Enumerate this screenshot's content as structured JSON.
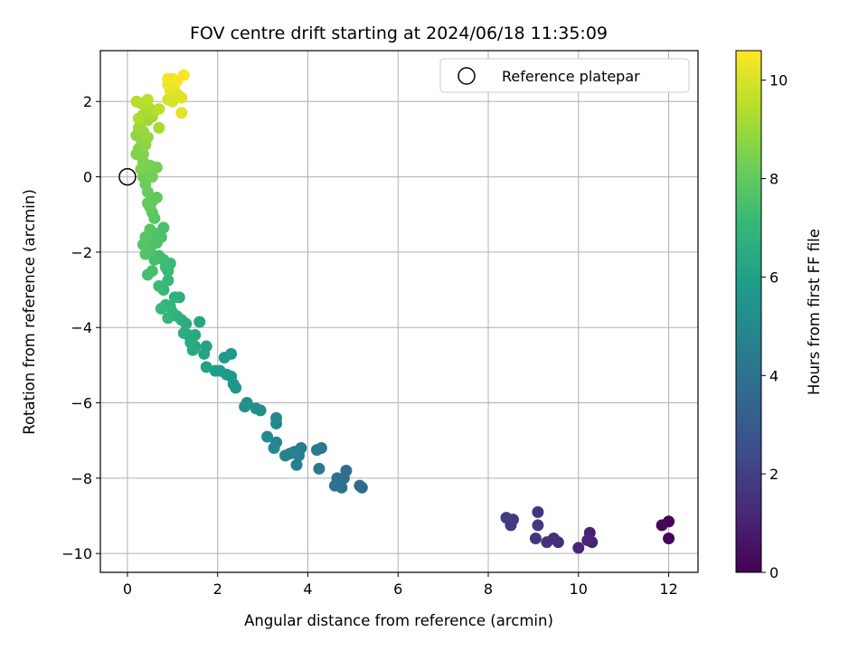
{
  "chart_data": {
    "type": "scatter",
    "title": "FOV centre drift starting at 2024/06/18 11:35:09",
    "xlabel": "Angular distance from reference (arcmin)",
    "ylabel": "Rotation from reference (arcmin)",
    "xlim": [
      -0.6,
      12.65
    ],
    "ylim": [
      -10.5,
      3.35
    ],
    "xticks": [
      0,
      2,
      4,
      6,
      8,
      10,
      12
    ],
    "yticks": [
      -10,
      -8,
      -6,
      -4,
      -2,
      0,
      2
    ],
    "xtick_labels": [
      "0",
      "2",
      "4",
      "6",
      "8",
      "10",
      "12"
    ],
    "ytick_labels": [
      "−10",
      "−8",
      "−6",
      "−4",
      "−2",
      "0",
      "2"
    ],
    "grid": true,
    "legend": {
      "placement": "top-right",
      "entries": [
        "Reference platepar"
      ]
    },
    "reference_point": {
      "x": 0,
      "y": 0
    },
    "colorbar": {
      "label": "Hours from first FF file",
      "range": [
        0,
        10.6
      ],
      "ticks": [
        0,
        2,
        4,
        6,
        8,
        10
      ],
      "tick_labels": [
        "0",
        "2",
        "4",
        "6",
        "8",
        "10"
      ],
      "colormap": "viridis",
      "colormap_stops": [
        "#440154",
        "#482878",
        "#3e4a89",
        "#31688e",
        "#26828e",
        "#1f9e89",
        "#35b779",
        "#6ece58",
        "#b5de2b",
        "#fde725"
      ]
    },
    "series": [
      {
        "points": [
          {
            "x": 12.0,
            "y": -9.15,
            "t": 0.05
          },
          {
            "x": 12.0,
            "y": -9.6,
            "t": 0.1
          },
          {
            "x": 11.85,
            "y": -9.25,
            "t": 0.2
          },
          {
            "x": 10.25,
            "y": -9.45,
            "t": 1.0
          },
          {
            "x": 10.3,
            "y": -9.7,
            "t": 1.05
          },
          {
            "x": 10.2,
            "y": -9.65,
            "t": 1.1
          },
          {
            "x": 10.0,
            "y": -9.85,
            "t": 1.15
          },
          {
            "x": 9.55,
            "y": -9.7,
            "t": 1.4
          },
          {
            "x": 9.45,
            "y": -9.6,
            "t": 1.45
          },
          {
            "x": 9.3,
            "y": -9.7,
            "t": 1.5
          },
          {
            "x": 9.1,
            "y": -8.9,
            "t": 1.6
          },
          {
            "x": 9.1,
            "y": -9.25,
            "t": 1.65
          },
          {
            "x": 9.05,
            "y": -9.6,
            "t": 1.7
          },
          {
            "x": 8.55,
            "y": -9.1,
            "t": 1.8
          },
          {
            "x": 8.5,
            "y": -9.25,
            "t": 1.85
          },
          {
            "x": 8.4,
            "y": -9.05,
            "t": 1.9
          },
          {
            "x": 5.2,
            "y": -8.25,
            "t": 3.6
          },
          {
            "x": 5.15,
            "y": -8.2,
            "t": 3.65
          },
          {
            "x": 4.85,
            "y": -7.8,
            "t": 3.8
          },
          {
            "x": 4.8,
            "y": -8.0,
            "t": 3.85
          },
          {
            "x": 4.75,
            "y": -8.25,
            "t": 3.9
          },
          {
            "x": 4.65,
            "y": -8.0,
            "t": 3.95
          },
          {
            "x": 4.6,
            "y": -8.2,
            "t": 4.0
          },
          {
            "x": 4.3,
            "y": -7.2,
            "t": 4.2
          },
          {
            "x": 4.25,
            "y": -7.75,
            "t": 4.25
          },
          {
            "x": 4.2,
            "y": -7.25,
            "t": 4.3
          },
          {
            "x": 3.85,
            "y": -7.2,
            "t": 4.5
          },
          {
            "x": 3.8,
            "y": -7.4,
            "t": 4.55
          },
          {
            "x": 3.75,
            "y": -7.65,
            "t": 4.6
          },
          {
            "x": 3.7,
            "y": -7.3,
            "t": 4.65
          },
          {
            "x": 3.6,
            "y": -7.35,
            "t": 4.7
          },
          {
            "x": 3.5,
            "y": -7.4,
            "t": 4.75
          },
          {
            "x": 3.3,
            "y": -7.05,
            "t": 4.9
          },
          {
            "x": 3.3,
            "y": -6.4,
            "t": 4.95
          },
          {
            "x": 3.3,
            "y": -6.55,
            "t": 5.0
          },
          {
            "x": 3.25,
            "y": -7.2,
            "t": 5.0
          },
          {
            "x": 3.1,
            "y": -6.9,
            "t": 5.05
          },
          {
            "x": 2.95,
            "y": -6.2,
            "t": 5.2
          },
          {
            "x": 2.85,
            "y": -6.15,
            "t": 5.25
          },
          {
            "x": 2.65,
            "y": -6.0,
            "t": 5.35
          },
          {
            "x": 2.6,
            "y": -6.1,
            "t": 5.4
          },
          {
            "x": 2.4,
            "y": -5.6,
            "t": 5.55
          },
          {
            "x": 2.35,
            "y": -5.5,
            "t": 5.6
          },
          {
            "x": 2.3,
            "y": -5.3,
            "t": 5.65
          },
          {
            "x": 2.3,
            "y": -4.7,
            "t": 5.7
          },
          {
            "x": 2.2,
            "y": -5.25,
            "t": 5.75
          },
          {
            "x": 2.15,
            "y": -4.8,
            "t": 5.8
          },
          {
            "x": 2.05,
            "y": -5.15,
            "t": 5.85
          },
          {
            "x": 1.95,
            "y": -5.15,
            "t": 5.9
          },
          {
            "x": 1.75,
            "y": -5.05,
            "t": 6.05
          },
          {
            "x": 1.75,
            "y": -4.5,
            "t": 6.1
          },
          {
            "x": 1.7,
            "y": -4.7,
            "t": 6.15
          },
          {
            "x": 1.6,
            "y": -3.85,
            "t": 6.25
          },
          {
            "x": 1.5,
            "y": -4.5,
            "t": 6.3
          },
          {
            "x": 1.5,
            "y": -4.2,
            "t": 6.35
          },
          {
            "x": 1.45,
            "y": -4.6,
            "t": 6.4
          },
          {
            "x": 1.4,
            "y": -4.4,
            "t": 6.45
          },
          {
            "x": 1.35,
            "y": -4.2,
            "t": 6.5
          },
          {
            "x": 1.3,
            "y": -3.9,
            "t": 6.55
          },
          {
            "x": 1.25,
            "y": -4.15,
            "t": 6.6
          },
          {
            "x": 1.2,
            "y": -3.8,
            "t": 6.65
          },
          {
            "x": 1.15,
            "y": -3.2,
            "t": 6.7
          },
          {
            "x": 1.1,
            "y": -3.7,
            "t": 6.75
          },
          {
            "x": 1.05,
            "y": -3.2,
            "t": 6.8
          },
          {
            "x": 1.0,
            "y": -3.6,
            "t": 6.85
          },
          {
            "x": 0.95,
            "y": -3.45,
            "t": 6.9
          },
          {
            "x": 0.9,
            "y": -3.75,
            "t": 6.95
          },
          {
            "x": 0.85,
            "y": -3.4,
            "t": 7.0
          },
          {
            "x": 0.8,
            "y": -3.0,
            "t": 7.05
          },
          {
            "x": 0.75,
            "y": -3.5,
            "t": 7.1
          },
          {
            "x": 0.9,
            "y": -2.75,
            "t": 7.1
          },
          {
            "x": 0.9,
            "y": -2.5,
            "t": 7.15
          },
          {
            "x": 0.95,
            "y": -2.3,
            "t": 7.2
          },
          {
            "x": 0.7,
            "y": -2.9,
            "t": 7.2
          },
          {
            "x": 0.85,
            "y": -2.4,
            "t": 7.25
          },
          {
            "x": 0.8,
            "y": -2.2,
            "t": 7.3
          },
          {
            "x": 0.7,
            "y": -2.1,
            "t": 7.35
          },
          {
            "x": 0.6,
            "y": -2.2,
            "t": 7.4
          },
          {
            "x": 0.55,
            "y": -2.5,
            "t": 7.45
          },
          {
            "x": 0.45,
            "y": -2.6,
            "t": 7.45
          },
          {
            "x": 0.8,
            "y": -1.35,
            "t": 7.5
          },
          {
            "x": 0.75,
            "y": -1.6,
            "t": 7.55
          },
          {
            "x": 0.65,
            "y": -1.75,
            "t": 7.6
          },
          {
            "x": 0.6,
            "y": -1.5,
            "t": 7.6
          },
          {
            "x": 0.55,
            "y": -1.8,
            "t": 7.65
          },
          {
            "x": 0.5,
            "y": -1.95,
            "t": 7.7
          },
          {
            "x": 0.4,
            "y": -2.05,
            "t": 7.7
          },
          {
            "x": 0.35,
            "y": -1.8,
            "t": 7.75
          },
          {
            "x": 0.4,
            "y": -1.6,
            "t": 7.8
          },
          {
            "x": 0.5,
            "y": -1.4,
            "t": 7.8
          },
          {
            "x": 0.6,
            "y": -1.1,
            "t": 7.85
          },
          {
            "x": 0.55,
            "y": -0.95,
            "t": 7.9
          },
          {
            "x": 0.65,
            "y": -0.55,
            "t": 7.95
          },
          {
            "x": 0.55,
            "y": -0.65,
            "t": 8.0
          },
          {
            "x": 0.5,
            "y": -0.8,
            "t": 8.0
          },
          {
            "x": 0.45,
            "y": -0.7,
            "t": 8.05
          },
          {
            "x": 0.45,
            "y": -0.4,
            "t": 8.1
          },
          {
            "x": 0.4,
            "y": -0.2,
            "t": 8.15
          },
          {
            "x": 0.35,
            "y": 0.0,
            "t": 8.2
          },
          {
            "x": 0.45,
            "y": 0.1,
            "t": 8.25
          },
          {
            "x": 0.55,
            "y": 0.0,
            "t": 8.3
          },
          {
            "x": 0.65,
            "y": 0.25,
            "t": 8.35
          },
          {
            "x": 0.5,
            "y": 0.3,
            "t": 8.4
          },
          {
            "x": 0.35,
            "y": 0.4,
            "t": 8.45
          },
          {
            "x": 0.3,
            "y": 0.2,
            "t": 8.5
          },
          {
            "x": 0.2,
            "y": 0.6,
            "t": 8.55
          },
          {
            "x": 0.25,
            "y": 0.75,
            "t": 8.6
          },
          {
            "x": 0.35,
            "y": 0.6,
            "t": 8.6
          },
          {
            "x": 0.4,
            "y": 0.85,
            "t": 8.7
          },
          {
            "x": 0.3,
            "y": 1.0,
            "t": 8.75
          },
          {
            "x": 0.2,
            "y": 1.1,
            "t": 8.8
          },
          {
            "x": 0.35,
            "y": 1.2,
            "t": 8.85
          },
          {
            "x": 0.45,
            "y": 1.05,
            "t": 8.9
          },
          {
            "x": 0.25,
            "y": 1.3,
            "t": 8.95
          },
          {
            "x": 0.3,
            "y": 1.45,
            "t": 9.0
          },
          {
            "x": 0.45,
            "y": 1.5,
            "t": 9.05
          },
          {
            "x": 0.35,
            "y": 1.65,
            "t": 9.1
          },
          {
            "x": 0.55,
            "y": 1.6,
            "t": 9.15
          },
          {
            "x": 0.7,
            "y": 1.3,
            "t": 9.2
          },
          {
            "x": 0.5,
            "y": 1.8,
            "t": 9.25
          },
          {
            "x": 0.6,
            "y": 1.75,
            "t": 9.3
          },
          {
            "x": 0.25,
            "y": 1.55,
            "t": 9.3
          },
          {
            "x": 0.4,
            "y": 1.9,
            "t": 9.35
          },
          {
            "x": 0.3,
            "y": 1.95,
            "t": 9.4
          },
          {
            "x": 0.2,
            "y": 2.0,
            "t": 9.45
          },
          {
            "x": 0.45,
            "y": 2.05,
            "t": 9.5
          },
          {
            "x": 0.7,
            "y": 1.8,
            "t": 9.55
          },
          {
            "x": 0.9,
            "y": 2.05,
            "t": 9.9
          },
          {
            "x": 1.0,
            "y": 2.0,
            "t": 10.0
          },
          {
            "x": 1.1,
            "y": 2.2,
            "t": 10.05
          },
          {
            "x": 1.2,
            "y": 2.1,
            "t": 10.1
          },
          {
            "x": 1.2,
            "y": 1.7,
            "t": 10.15
          },
          {
            "x": 0.95,
            "y": 2.3,
            "t": 10.2
          },
          {
            "x": 1.05,
            "y": 2.45,
            "t": 10.25
          },
          {
            "x": 0.9,
            "y": 2.45,
            "t": 10.3
          },
          {
            "x": 1.0,
            "y": 2.6,
            "t": 10.35
          },
          {
            "x": 0.9,
            "y": 2.6,
            "t": 10.4
          },
          {
            "x": 1.1,
            "y": 2.55,
            "t": 10.45
          },
          {
            "x": 1.25,
            "y": 2.7,
            "t": 10.5
          }
        ]
      }
    ]
  }
}
